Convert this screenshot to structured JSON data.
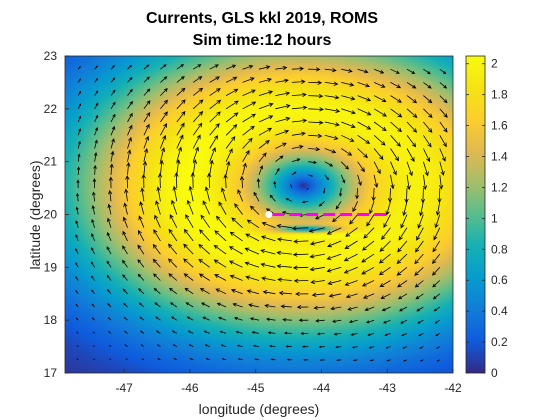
{
  "chart_data": {
    "type": "heatmap",
    "title": "Currents, GLS kkl 2019, ROMS",
    "subtitle": "Sim time:12 hours",
    "xlabel": "longitude (degrees)",
    "ylabel": "latitude (degrees)",
    "xlim": [
      -47.9,
      -42
    ],
    "ylim": [
      17,
      23
    ],
    "xticks": [
      -47,
      -46,
      -45,
      -44,
      -43,
      -42
    ],
    "yticks": [
      17,
      18,
      19,
      20,
      21,
      22,
      23
    ],
    "colorbar": {
      "min": 0,
      "max": 2.05,
      "ticks": [
        0,
        0.2,
        0.4,
        0.6,
        0.8,
        1,
        1.2,
        1.4,
        1.6,
        1.8,
        2
      ],
      "colormap": "parula"
    },
    "field": {
      "description": "current speed magnitude with quiver arrows",
      "vortex_center": [
        -44.3,
        20.55
      ],
      "peak_speed": 2.0,
      "vortex_radius_deg": 1.4
    },
    "track": {
      "color": "#ff00ff",
      "style": "dashed",
      "lon": [
        -44.75,
        -43.0
      ],
      "lat": [
        20.0,
        20.0
      ]
    },
    "marker": {
      "color": "#ffffff",
      "lon": -44.8,
      "lat": 20.0
    },
    "colors": {
      "background": "#ffffff",
      "axis": "#262626",
      "track": "#ff00ff"
    }
  }
}
